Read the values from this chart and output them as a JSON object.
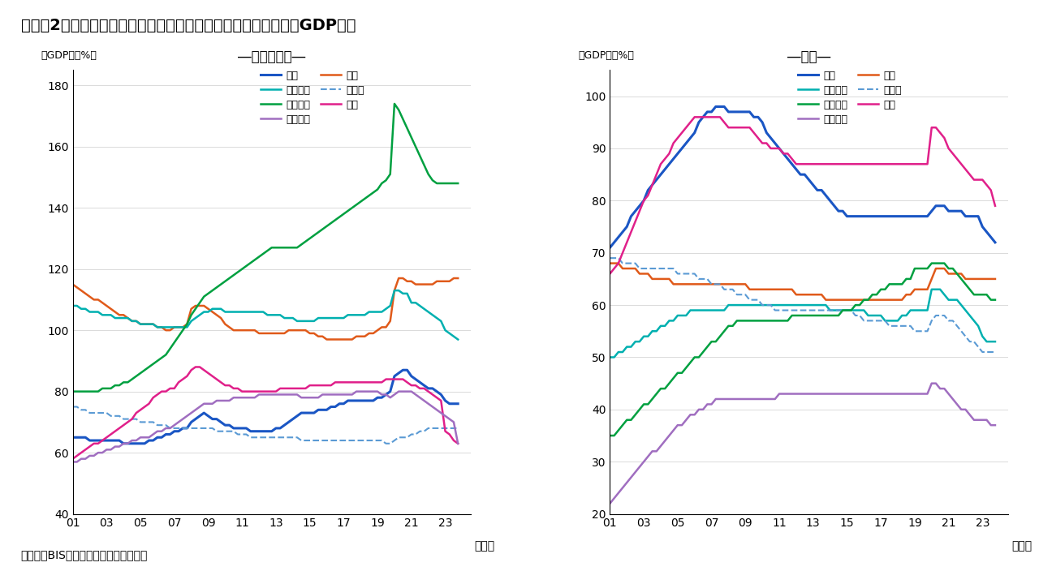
{
  "title": "（図表2）主要先進国：非金融企業および家計の借り入れ残高（GDP比）",
  "subtitle_left": "―非金融企業―",
  "subtitle_right": "―家計―",
  "ylabel": "（GDP比、%）",
  "xlabel_suffix": "（年）",
  "source": "（出所）BIS資料よりインベスコが作成",
  "years": [
    2001,
    2001.25,
    2001.5,
    2001.75,
    2002,
    2002.25,
    2002.5,
    2002.75,
    2003,
    2003.25,
    2003.5,
    2003.75,
    2004,
    2004.25,
    2004.5,
    2004.75,
    2005,
    2005.25,
    2005.5,
    2005.75,
    2006,
    2006.25,
    2006.5,
    2006.75,
    2007,
    2007.25,
    2007.5,
    2007.75,
    2008,
    2008.25,
    2008.5,
    2008.75,
    2009,
    2009.25,
    2009.5,
    2009.75,
    2010,
    2010.25,
    2010.5,
    2010.75,
    2011,
    2011.25,
    2011.5,
    2011.75,
    2012,
    2012.25,
    2012.5,
    2012.75,
    2013,
    2013.25,
    2013.5,
    2013.75,
    2014,
    2014.25,
    2014.5,
    2014.75,
    2015,
    2015.25,
    2015.5,
    2015.75,
    2016,
    2016.25,
    2016.5,
    2016.75,
    2017,
    2017.25,
    2017.5,
    2017.75,
    2018,
    2018.25,
    2018.5,
    2018.75,
    2019,
    2019.25,
    2019.5,
    2019.75,
    2020,
    2020.25,
    2020.5,
    2020.75,
    2021,
    2021.25,
    2021.5,
    2021.75,
    2022,
    2022.25,
    2022.5,
    2022.75,
    2023,
    2023.25,
    2023.5,
    2023.75
  ],
  "corp": {
    "usa": [
      65,
      65,
      65,
      65,
      64,
      64,
      64,
      64,
      64,
      64,
      64,
      64,
      63,
      63,
      63,
      63,
      63,
      63,
      64,
      64,
      65,
      65,
      66,
      66,
      67,
      67,
      68,
      68,
      70,
      71,
      72,
      73,
      72,
      71,
      71,
      70,
      69,
      69,
      68,
      68,
      68,
      68,
      67,
      67,
      67,
      67,
      67,
      67,
      68,
      68,
      69,
      70,
      71,
      72,
      73,
      73,
      73,
      73,
      74,
      74,
      74,
      75,
      75,
      76,
      76,
      77,
      77,
      77,
      77,
      77,
      77,
      77,
      78,
      78,
      79,
      80,
      85,
      86,
      87,
      87,
      85,
      84,
      83,
      82,
      81,
      81,
      80,
      79,
      77,
      76,
      76,
      76
    ],
    "japan": [
      115,
      114,
      113,
      112,
      111,
      110,
      110,
      109,
      108,
      107,
      106,
      105,
      105,
      104,
      103,
      103,
      102,
      102,
      102,
      102,
      101,
      101,
      100,
      100,
      101,
      101,
      101,
      102,
      107,
      108,
      108,
      108,
      107,
      106,
      105,
      104,
      102,
      101,
      100,
      100,
      100,
      100,
      100,
      100,
      99,
      99,
      99,
      99,
      99,
      99,
      99,
      100,
      100,
      100,
      100,
      100,
      99,
      99,
      98,
      98,
      97,
      97,
      97,
      97,
      97,
      97,
      97,
      98,
      98,
      98,
      99,
      99,
      100,
      101,
      101,
      103,
      113,
      117,
      117,
      116,
      116,
      115,
      115,
      115,
      115,
      115,
      116,
      116,
      116,
      116,
      117,
      117
    ],
    "euro": [
      108,
      108,
      107,
      107,
      106,
      106,
      106,
      105,
      105,
      105,
      104,
      104,
      104,
      104,
      103,
      103,
      102,
      102,
      102,
      102,
      101,
      101,
      101,
      101,
      101,
      101,
      101,
      101,
      103,
      104,
      105,
      106,
      106,
      107,
      107,
      107,
      106,
      106,
      106,
      106,
      106,
      106,
      106,
      106,
      106,
      106,
      105,
      105,
      105,
      105,
      104,
      104,
      104,
      103,
      103,
      103,
      103,
      103,
      104,
      104,
      104,
      104,
      104,
      104,
      104,
      105,
      105,
      105,
      105,
      105,
      106,
      106,
      106,
      106,
      107,
      108,
      113,
      113,
      112,
      112,
      109,
      109,
      108,
      107,
      106,
      105,
      104,
      103,
      100,
      99,
      98,
      97
    ],
    "germany": [
      75,
      75,
      74,
      74,
      73,
      73,
      73,
      73,
      73,
      72,
      72,
      72,
      71,
      71,
      71,
      71,
      70,
      70,
      70,
      70,
      69,
      69,
      69,
      68,
      68,
      68,
      68,
      68,
      68,
      68,
      68,
      68,
      68,
      68,
      67,
      67,
      67,
      67,
      67,
      66,
      66,
      66,
      65,
      65,
      65,
      65,
      65,
      65,
      65,
      65,
      65,
      65,
      65,
      65,
      64,
      64,
      64,
      64,
      64,
      64,
      64,
      64,
      64,
      64,
      64,
      64,
      64,
      64,
      64,
      64,
      64,
      64,
      64,
      64,
      63,
      63,
      64,
      65,
      65,
      65,
      66,
      66,
      67,
      67,
      68,
      68,
      68,
      68,
      68,
      68,
      68,
      68
    ],
    "france": [
      80,
      80,
      80,
      80,
      80,
      80,
      80,
      81,
      81,
      81,
      82,
      82,
      83,
      83,
      84,
      85,
      86,
      87,
      88,
      89,
      90,
      91,
      92,
      94,
      96,
      98,
      100,
      102,
      105,
      107,
      109,
      111,
      112,
      113,
      114,
      115,
      116,
      117,
      118,
      119,
      120,
      121,
      122,
      123,
      124,
      125,
      126,
      127,
      127,
      127,
      127,
      127,
      127,
      127,
      128,
      129,
      130,
      131,
      132,
      133,
      134,
      135,
      136,
      137,
      138,
      139,
      140,
      141,
      142,
      143,
      144,
      145,
      146,
      148,
      149,
      151,
      174,
      172,
      169,
      166,
      163,
      160,
      157,
      154,
      151,
      149,
      148,
      148,
      148,
      148,
      148,
      148
    ],
    "uk": [
      58,
      59,
      60,
      61,
      62,
      63,
      63,
      64,
      65,
      66,
      67,
      68,
      69,
      70,
      71,
      73,
      74,
      75,
      76,
      78,
      79,
      80,
      80,
      81,
      81,
      83,
      84,
      85,
      87,
      88,
      88,
      87,
      86,
      85,
      84,
      83,
      82,
      82,
      81,
      81,
      80,
      80,
      80,
      80,
      80,
      80,
      80,
      80,
      80,
      81,
      81,
      81,
      81,
      81,
      81,
      81,
      82,
      82,
      82,
      82,
      82,
      82,
      83,
      83,
      83,
      83,
      83,
      83,
      83,
      83,
      83,
      83,
      83,
      83,
      84,
      84,
      84,
      84,
      84,
      83,
      82,
      82,
      81,
      81,
      80,
      79,
      78,
      77,
      67,
      66,
      64,
      63
    ],
    "italy": [
      57,
      57,
      58,
      58,
      59,
      59,
      60,
      60,
      61,
      61,
      62,
      62,
      63,
      63,
      64,
      64,
      65,
      65,
      65,
      66,
      67,
      67,
      68,
      68,
      69,
      70,
      71,
      72,
      73,
      74,
      75,
      76,
      76,
      76,
      77,
      77,
      77,
      77,
      78,
      78,
      78,
      78,
      78,
      78,
      79,
      79,
      79,
      79,
      79,
      79,
      79,
      79,
      79,
      79,
      78,
      78,
      78,
      78,
      78,
      79,
      79,
      79,
      79,
      79,
      79,
      79,
      79,
      80,
      80,
      80,
      80,
      80,
      80,
      79,
      79,
      78,
      79,
      80,
      80,
      80,
      80,
      79,
      78,
      77,
      76,
      75,
      74,
      73,
      72,
      71,
      70,
      63
    ]
  },
  "household": {
    "usa": [
      71,
      72,
      73,
      74,
      75,
      77,
      78,
      79,
      80,
      82,
      83,
      84,
      85,
      86,
      87,
      88,
      89,
      90,
      91,
      92,
      93,
      95,
      96,
      97,
      97,
      98,
      98,
      98,
      97,
      97,
      97,
      97,
      97,
      97,
      96,
      96,
      95,
      93,
      92,
      91,
      90,
      89,
      88,
      87,
      86,
      85,
      85,
      84,
      83,
      82,
      82,
      81,
      80,
      79,
      78,
      78,
      77,
      77,
      77,
      77,
      77,
      77,
      77,
      77,
      77,
      77,
      77,
      77,
      77,
      77,
      77,
      77,
      77,
      77,
      77,
      77,
      78,
      79,
      79,
      79,
      78,
      78,
      78,
      78,
      77,
      77,
      77,
      77,
      75,
      74,
      73,
      72
    ],
    "japan": [
      68,
      68,
      68,
      67,
      67,
      67,
      67,
      66,
      66,
      66,
      65,
      65,
      65,
      65,
      65,
      64,
      64,
      64,
      64,
      64,
      64,
      64,
      64,
      64,
      64,
      64,
      64,
      64,
      64,
      64,
      64,
      64,
      64,
      63,
      63,
      63,
      63,
      63,
      63,
      63,
      63,
      63,
      63,
      63,
      62,
      62,
      62,
      62,
      62,
      62,
      62,
      61,
      61,
      61,
      61,
      61,
      61,
      61,
      61,
      61,
      61,
      61,
      61,
      61,
      61,
      61,
      61,
      61,
      61,
      61,
      62,
      62,
      63,
      63,
      63,
      63,
      65,
      67,
      67,
      67,
      66,
      66,
      66,
      66,
      65,
      65,
      65,
      65,
      65,
      65,
      65,
      65
    ],
    "euro": [
      50,
      50,
      51,
      51,
      52,
      52,
      53,
      53,
      54,
      54,
      55,
      55,
      56,
      56,
      57,
      57,
      58,
      58,
      58,
      59,
      59,
      59,
      59,
      59,
      59,
      59,
      59,
      59,
      60,
      60,
      60,
      60,
      60,
      60,
      60,
      60,
      60,
      60,
      60,
      60,
      60,
      60,
      60,
      60,
      60,
      60,
      60,
      60,
      60,
      60,
      60,
      60,
      59,
      59,
      59,
      59,
      59,
      59,
      59,
      59,
      59,
      58,
      58,
      58,
      58,
      57,
      57,
      57,
      57,
      58,
      58,
      59,
      59,
      59,
      59,
      59,
      63,
      63,
      63,
      62,
      61,
      61,
      61,
      60,
      59,
      58,
      57,
      56,
      54,
      53,
      53,
      53
    ],
    "germany": [
      69,
      69,
      69,
      68,
      68,
      68,
      68,
      67,
      67,
      67,
      67,
      67,
      67,
      67,
      67,
      67,
      66,
      66,
      66,
      66,
      66,
      65,
      65,
      65,
      64,
      64,
      64,
      63,
      63,
      63,
      62,
      62,
      62,
      61,
      61,
      61,
      60,
      60,
      60,
      59,
      59,
      59,
      59,
      59,
      59,
      59,
      59,
      59,
      59,
      59,
      59,
      59,
      59,
      59,
      59,
      59,
      59,
      59,
      58,
      58,
      57,
      57,
      57,
      57,
      57,
      57,
      56,
      56,
      56,
      56,
      56,
      56,
      55,
      55,
      55,
      55,
      57,
      58,
      58,
      58,
      57,
      57,
      56,
      55,
      54,
      53,
      53,
      52,
      51,
      51,
      51,
      51
    ],
    "france": [
      35,
      35,
      36,
      37,
      38,
      38,
      39,
      40,
      41,
      41,
      42,
      43,
      44,
      44,
      45,
      46,
      47,
      47,
      48,
      49,
      50,
      50,
      51,
      52,
      53,
      53,
      54,
      55,
      56,
      56,
      57,
      57,
      57,
      57,
      57,
      57,
      57,
      57,
      57,
      57,
      57,
      57,
      57,
      58,
      58,
      58,
      58,
      58,
      58,
      58,
      58,
      58,
      58,
      58,
      58,
      59,
      59,
      59,
      60,
      60,
      61,
      61,
      62,
      62,
      63,
      63,
      64,
      64,
      64,
      64,
      65,
      65,
      67,
      67,
      67,
      67,
      68,
      68,
      68,
      68,
      67,
      67,
      66,
      65,
      64,
      63,
      62,
      62,
      62,
      62,
      61,
      61
    ],
    "uk": [
      66,
      67,
      68,
      70,
      72,
      74,
      76,
      78,
      80,
      81,
      83,
      85,
      87,
      88,
      89,
      91,
      92,
      93,
      94,
      95,
      96,
      96,
      96,
      96,
      96,
      96,
      96,
      95,
      94,
      94,
      94,
      94,
      94,
      94,
      93,
      92,
      91,
      91,
      90,
      90,
      90,
      89,
      89,
      88,
      87,
      87,
      87,
      87,
      87,
      87,
      87,
      87,
      87,
      87,
      87,
      87,
      87,
      87,
      87,
      87,
      87,
      87,
      87,
      87,
      87,
      87,
      87,
      87,
      87,
      87,
      87,
      87,
      87,
      87,
      87,
      87,
      94,
      94,
      93,
      92,
      90,
      89,
      88,
      87,
      86,
      85,
      84,
      84,
      84,
      83,
      82,
      79
    ],
    "italy": [
      22,
      23,
      24,
      25,
      26,
      27,
      28,
      29,
      30,
      31,
      32,
      32,
      33,
      34,
      35,
      36,
      37,
      37,
      38,
      39,
      39,
      40,
      40,
      41,
      41,
      42,
      42,
      42,
      42,
      42,
      42,
      42,
      42,
      42,
      42,
      42,
      42,
      42,
      42,
      42,
      43,
      43,
      43,
      43,
      43,
      43,
      43,
      43,
      43,
      43,
      43,
      43,
      43,
      43,
      43,
      43,
      43,
      43,
      43,
      43,
      43,
      43,
      43,
      43,
      43,
      43,
      43,
      43,
      43,
      43,
      43,
      43,
      43,
      43,
      43,
      43,
      45,
      45,
      44,
      44,
      43,
      42,
      41,
      40,
      40,
      39,
      38,
      38,
      38,
      38,
      37,
      37
    ]
  },
  "colors": {
    "usa": "#1a56c4",
    "japan": "#e05a1a",
    "euro": "#00b0b0",
    "germany": "#5a9ad4",
    "france": "#00a040",
    "uk": "#e0208a",
    "italy": "#a06ec0"
  },
  "corp_ylim": [
    40,
    185
  ],
  "corp_yticks": [
    40,
    60,
    80,
    100,
    120,
    140,
    160,
    180
  ],
  "hh_ylim": [
    20,
    105
  ],
  "hh_yticks": [
    20,
    30,
    40,
    50,
    60,
    70,
    80,
    90,
    100
  ],
  "xticks": [
    2001,
    2003,
    2005,
    2007,
    2009,
    2011,
    2013,
    2015,
    2017,
    2019,
    2021,
    2023
  ],
  "xticklabels": [
    "01",
    "03",
    "05",
    "07",
    "09",
    "11",
    "13",
    "15",
    "17",
    "19",
    "21",
    "23"
  ]
}
